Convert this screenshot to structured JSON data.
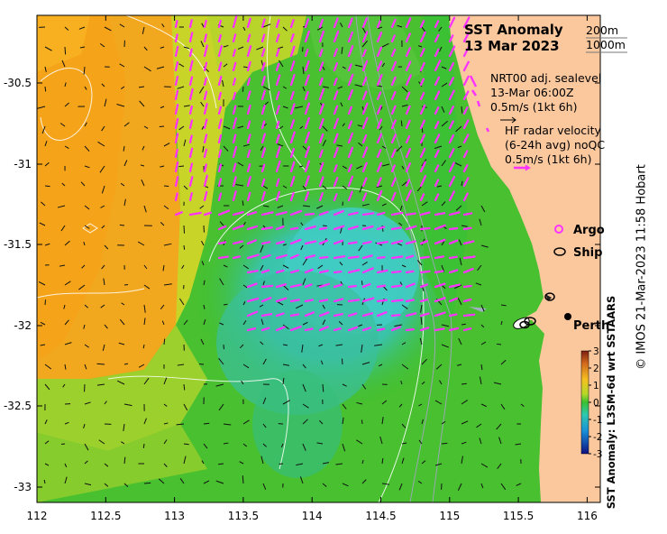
{
  "title": "SST Anomaly",
  "date": "13 Mar 2023",
  "depth_contours": [
    "200m",
    "1000m"
  ],
  "sealevel_legend": [
    "NRT00 adj. sealevel",
    "13-Mar 06:00Z",
    "0.5m/s (1kt 6h)"
  ],
  "hf_legend": [
    "HF radar velocity",
    "(6-24h avg) noQC",
    "0.5m/s (1kt 6h)"
  ],
  "markers": {
    "argo": "Argo",
    "ship": "Ship"
  },
  "city": "Perth",
  "x_ticks": [
    "112",
    "112.5",
    "113",
    "113.5",
    "114",
    "114.5",
    "115",
    "115.5",
    "116"
  ],
  "y_ticks": [
    "-30.5",
    "-31",
    "-31.5",
    "-32",
    "-32.5",
    "-33"
  ],
  "colorbar": {
    "ticks": [
      "3",
      "2",
      "1",
      "0",
      "-1",
      "-2",
      "-3"
    ],
    "title": "SST Anomaly: L3SM-6d wrt SSTAARS"
  },
  "credit": "© IMOS 21-Mar-2023 11:58 Hobart",
  "colors": {
    "land": "#fbc89e",
    "hf_vector": "#ff33ff",
    "warm": "#f0a020",
    "neutral": "#3cbf2c",
    "cool": "#38c6b8"
  }
}
